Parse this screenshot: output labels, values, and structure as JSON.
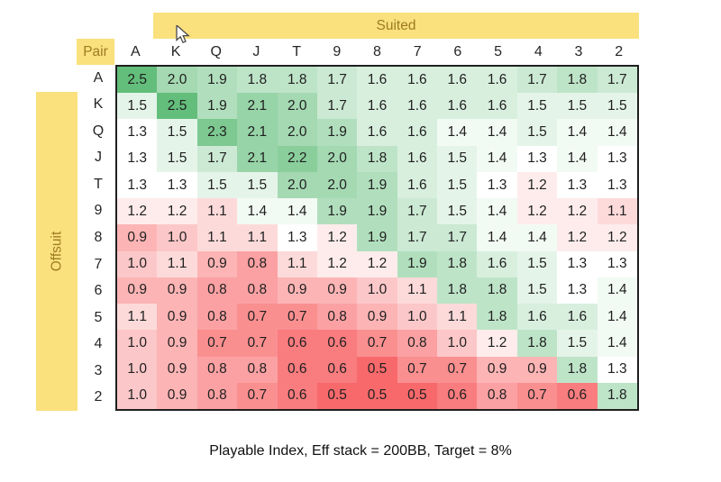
{
  "header": {
    "suited_label": "Suited",
    "pair_label": "Pair",
    "offsuit_label": "Offsuit"
  },
  "caption": "Playable Index, Eff stack = 200BB, Target = 8%",
  "colors": {
    "band_bg": "#FAE17D",
    "band_text": "#9E7C22",
    "scale_min_color": "#F8696B",
    "scale_mid_color": "#FFFFFF",
    "scale_max_color": "#63BE7B",
    "grid_border": "#1F1F1F"
  },
  "chart_data": {
    "type": "heatmap",
    "title": "Playable Index, Eff stack = 200BB, Target = 8%",
    "columns": [
      "A",
      "K",
      "Q",
      "J",
      "T",
      "9",
      "8",
      "7",
      "6",
      "5",
      "4",
      "3",
      "2"
    ],
    "rows": [
      "A",
      "K",
      "Q",
      "J",
      "T",
      "9",
      "8",
      "7",
      "6",
      "5",
      "4",
      "3",
      "2"
    ],
    "upper_triangle_meaning": "Suited",
    "lower_triangle_meaning": "Offsuit",
    "diagonal_meaning": "Pair",
    "scale": {
      "min": 0.5,
      "mid": 1.3,
      "max": 2.5
    },
    "values": [
      [
        2.5,
        2.0,
        1.9,
        1.8,
        1.8,
        1.7,
        1.6,
        1.6,
        1.6,
        1.6,
        1.7,
        1.8,
        1.7
      ],
      [
        1.5,
        2.5,
        1.9,
        2.1,
        2.0,
        1.7,
        1.6,
        1.6,
        1.6,
        1.6,
        1.5,
        1.5,
        1.5
      ],
      [
        1.3,
        1.5,
        2.3,
        2.1,
        2.0,
        1.9,
        1.6,
        1.6,
        1.4,
        1.4,
        1.5,
        1.4,
        1.4
      ],
      [
        1.3,
        1.5,
        1.7,
        2.1,
        2.2,
        2.0,
        1.8,
        1.6,
        1.5,
        1.4,
        1.3,
        1.4,
        1.3
      ],
      [
        1.3,
        1.3,
        1.5,
        1.5,
        2.0,
        2.0,
        1.9,
        1.6,
        1.5,
        1.3,
        1.2,
        1.3,
        1.3
      ],
      [
        1.2,
        1.2,
        1.1,
        1.4,
        1.4,
        1.9,
        1.9,
        1.7,
        1.5,
        1.4,
        1.2,
        1.2,
        1.1
      ],
      [
        0.9,
        1.0,
        1.1,
        1.1,
        1.3,
        1.2,
        1.9,
        1.7,
        1.7,
        1.4,
        1.4,
        1.2,
        1.2
      ],
      [
        1.0,
        1.1,
        0.9,
        0.8,
        1.1,
        1.2,
        1.2,
        1.9,
        1.8,
        1.6,
        1.5,
        1.3,
        1.3
      ],
      [
        0.9,
        0.9,
        0.8,
        0.8,
        0.9,
        0.9,
        1.0,
        1.1,
        1.8,
        1.8,
        1.5,
        1.3,
        1.4
      ],
      [
        1.1,
        0.9,
        0.8,
        0.7,
        0.7,
        0.8,
        0.9,
        1.0,
        1.1,
        1.8,
        1.6,
        1.6,
        1.4
      ],
      [
        1.0,
        0.9,
        0.7,
        0.7,
        0.6,
        0.6,
        0.7,
        0.8,
        1.0,
        1.2,
        1.8,
        1.5,
        1.4
      ],
      [
        1.0,
        0.9,
        0.8,
        0.8,
        0.6,
        0.6,
        0.5,
        0.7,
        0.7,
        0.9,
        0.9,
        1.8,
        1.3
      ],
      [
        1.0,
        0.9,
        0.8,
        0.7,
        0.6,
        0.5,
        0.5,
        0.5,
        0.6,
        0.8,
        0.7,
        0.6,
        1.8
      ]
    ]
  }
}
